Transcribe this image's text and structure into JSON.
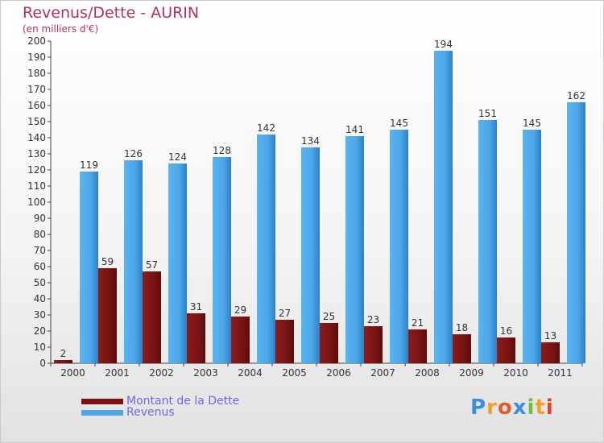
{
  "chart_data": {
    "type": "bar",
    "title": "Revenus/Dette - AURIN",
    "subtitle": "(en milliers d'€)",
    "categories": [
      "2000",
      "2001",
      "2002",
      "2003",
      "2004",
      "2005",
      "2006",
      "2007",
      "2008",
      "2009",
      "2010",
      "2011"
    ],
    "series": [
      {
        "name": "Montant de la Dette",
        "color": "#7a1414",
        "values": [
          2,
          59,
          57,
          31,
          29,
          27,
          25,
          23,
          21,
          18,
          16,
          13
        ]
      },
      {
        "name": "Revenus",
        "color": "#4ca6e8",
        "values": [
          119,
          126,
          124,
          128,
          142,
          134,
          141,
          145,
          194,
          151,
          145,
          162
        ]
      }
    ],
    "ylim": [
      0,
      200
    ],
    "ytick_step": 10,
    "xlabel": "",
    "ylabel": "",
    "legend_position": "bottom-left"
  },
  "legend": {
    "debt_label": "Montant de la Dette",
    "revenue_label": "Revenus"
  },
  "brand": {
    "letters": [
      "P",
      "r",
      "o",
      "x",
      "i",
      "t",
      "i"
    ],
    "colors": [
      "#3a8fd9",
      "#f2a12e",
      "#e05a2a",
      "#3a8fd9",
      "#6cbf3a",
      "#f2a12e",
      "#e0412a"
    ]
  }
}
